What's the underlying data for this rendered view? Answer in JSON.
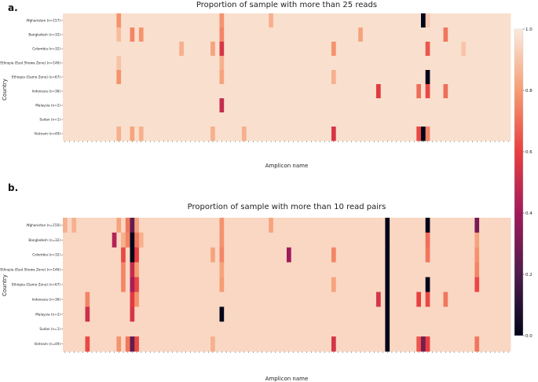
{
  "panel_labels": [
    "a.",
    "b."
  ],
  "colorbar": {
    "ticks": [
      "0.0",
      "0.2",
      "0.4",
      "0.6",
      "0.8",
      "1.0"
    ],
    "colormap": [
      "#03051a",
      "#4c1d4b",
      "#a11a5b",
      "#e83f3f",
      "#f69c73",
      "#faebdd"
    ]
  },
  "chart_data": [
    {
      "type": "heatmap",
      "title": "Proportion of sample with more than 25 reads",
      "xlabel": "Amplicon name",
      "ylabel": "Country",
      "rows": [
        "Afghanistan (n=157)",
        "Bangladesh (n=32)",
        "Colombia (n=32)",
        "Ethiopia (East Shewa Zone) (n=146)",
        "Ethiopia (Gamo Zone) (n=67)",
        "Indonesia (n=36)",
        "Malaysia (n=2)",
        "Sudan (n=1)",
        "Vietnam (n=49)"
      ],
      "n_columns": 100,
      "base_value": 0.97,
      "cells": [
        {
          "row": 0,
          "col": 12,
          "value": 0.78
        },
        {
          "row": 0,
          "col": 35,
          "value": 0.78
        },
        {
          "row": 0,
          "col": 46,
          "value": 0.85
        },
        {
          "row": 0,
          "col": 80,
          "value": 0.0
        },
        {
          "row": 0,
          "col": 81,
          "value": 0.92
        },
        {
          "row": 1,
          "col": 12,
          "value": 0.88
        },
        {
          "row": 1,
          "col": 15,
          "value": 0.75
        },
        {
          "row": 1,
          "col": 17,
          "value": 0.78
        },
        {
          "row": 1,
          "col": 35,
          "value": 0.75
        },
        {
          "row": 1,
          "col": 66,
          "value": 0.82
        },
        {
          "row": 1,
          "col": 85,
          "value": 0.72
        },
        {
          "row": 2,
          "col": 26,
          "value": 0.85
        },
        {
          "row": 2,
          "col": 33,
          "value": 0.82
        },
        {
          "row": 2,
          "col": 35,
          "value": 0.55
        },
        {
          "row": 2,
          "col": 60,
          "value": 0.78
        },
        {
          "row": 2,
          "col": 81,
          "value": 0.65
        },
        {
          "row": 2,
          "col": 89,
          "value": 0.9
        },
        {
          "row": 3,
          "col": 12,
          "value": 0.9
        },
        {
          "row": 3,
          "col": 35,
          "value": 0.85
        },
        {
          "row": 4,
          "col": 12,
          "value": 0.78
        },
        {
          "row": 4,
          "col": 35,
          "value": 0.82
        },
        {
          "row": 4,
          "col": 60,
          "value": 0.85
        },
        {
          "row": 4,
          "col": 81,
          "value": 0.0
        },
        {
          "row": 5,
          "col": 70,
          "value": 0.58
        },
        {
          "row": 5,
          "col": 79,
          "value": 0.7
        },
        {
          "row": 5,
          "col": 81,
          "value": 0.62
        },
        {
          "row": 5,
          "col": 85,
          "value": 0.7
        },
        {
          "row": 6,
          "col": 35,
          "value": 0.5
        },
        {
          "row": 8,
          "col": 12,
          "value": 0.85
        },
        {
          "row": 8,
          "col": 15,
          "value": 0.82
        },
        {
          "row": 8,
          "col": 17,
          "value": 0.85
        },
        {
          "row": 8,
          "col": 33,
          "value": 0.85
        },
        {
          "row": 8,
          "col": 40,
          "value": 0.85
        },
        {
          "row": 8,
          "col": 60,
          "value": 0.55
        },
        {
          "row": 8,
          "col": 79,
          "value": 0.62
        },
        {
          "row": 8,
          "col": 80,
          "value": 0.0
        },
        {
          "row": 8,
          "col": 81,
          "value": 0.75
        }
      ]
    },
    {
      "type": "heatmap",
      "title": "Proportion of sample with more than 10 read pairs",
      "xlabel": "Amplicon name",
      "ylabel": "Country",
      "rows": [
        "Afghanistan (n=150)",
        "Bangladesh (n=32)",
        "Colombia (n=32)",
        "Ethiopia (East Shewa Zone) (n=146)",
        "Ethiopia (Gamo Zone) (n=67)",
        "Indonesia (n=36)",
        "Malaysia (n=2)",
        "Sudan (n=1)",
        "Vietnam (n=49)"
      ],
      "n_columns": 100,
      "base_value": 0.95,
      "cells": [
        {
          "row": 0,
          "col": 0,
          "value": 0.85
        },
        {
          "row": 0,
          "col": 2,
          "value": 0.85
        },
        {
          "row": 0,
          "col": 12,
          "value": 0.82
        },
        {
          "row": 0,
          "col": 14,
          "value": 0.72
        },
        {
          "row": 0,
          "col": 15,
          "value": 0.25
        },
        {
          "row": 0,
          "col": 16,
          "value": 0.82
        },
        {
          "row": 0,
          "col": 35,
          "value": 0.78
        },
        {
          "row": 0,
          "col": 46,
          "value": 0.82
        },
        {
          "row": 0,
          "col": 72,
          "value": 0.0
        },
        {
          "row": 0,
          "col": 81,
          "value": 0.0
        },
        {
          "row": 0,
          "col": 92,
          "value": 0.3
        },
        {
          "row": 1,
          "col": 11,
          "value": 0.45
        },
        {
          "row": 1,
          "col": 13,
          "value": 0.85
        },
        {
          "row": 1,
          "col": 14,
          "value": 0.75
        },
        {
          "row": 1,
          "col": 15,
          "value": 0.0
        },
        {
          "row": 1,
          "col": 16,
          "value": 0.72
        },
        {
          "row": 1,
          "col": 17,
          "value": 0.85
        },
        {
          "row": 1,
          "col": 35,
          "value": 0.78
        },
        {
          "row": 1,
          "col": 72,
          "value": 0.0
        },
        {
          "row": 1,
          "col": 81,
          "value": 0.7
        },
        {
          "row": 1,
          "col": 92,
          "value": 0.82
        },
        {
          "row": 2,
          "col": 13,
          "value": 0.62
        },
        {
          "row": 2,
          "col": 15,
          "value": 0.0
        },
        {
          "row": 2,
          "col": 16,
          "value": 0.6
        },
        {
          "row": 2,
          "col": 33,
          "value": 0.82
        },
        {
          "row": 2,
          "col": 35,
          "value": 0.75
        },
        {
          "row": 2,
          "col": 50,
          "value": 0.4
        },
        {
          "row": 2,
          "col": 60,
          "value": 0.75
        },
        {
          "row": 2,
          "col": 72,
          "value": 0.0
        },
        {
          "row": 2,
          "col": 81,
          "value": 0.72
        },
        {
          "row": 2,
          "col": 92,
          "value": 0.78
        },
        {
          "row": 3,
          "col": 13,
          "value": 0.75
        },
        {
          "row": 3,
          "col": 15,
          "value": 0.5
        },
        {
          "row": 3,
          "col": 16,
          "value": 0.8
        },
        {
          "row": 3,
          "col": 35,
          "value": 0.82
        },
        {
          "row": 3,
          "col": 72,
          "value": 0.0
        },
        {
          "row": 3,
          "col": 92,
          "value": 0.75
        },
        {
          "row": 4,
          "col": 13,
          "value": 0.75
        },
        {
          "row": 4,
          "col": 15,
          "value": 0.42
        },
        {
          "row": 4,
          "col": 16,
          "value": 0.62
        },
        {
          "row": 4,
          "col": 35,
          "value": 0.8
        },
        {
          "row": 4,
          "col": 60,
          "value": 0.82
        },
        {
          "row": 4,
          "col": 72,
          "value": 0.0
        },
        {
          "row": 4,
          "col": 81,
          "value": 0.0
        },
        {
          "row": 4,
          "col": 92,
          "value": 0.62
        },
        {
          "row": 5,
          "col": 5,
          "value": 0.75
        },
        {
          "row": 5,
          "col": 15,
          "value": 0.58
        },
        {
          "row": 5,
          "col": 16,
          "value": 0.78
        },
        {
          "row": 5,
          "col": 70,
          "value": 0.55
        },
        {
          "row": 5,
          "col": 72,
          "value": 0.0
        },
        {
          "row": 5,
          "col": 79,
          "value": 0.6
        },
        {
          "row": 5,
          "col": 81,
          "value": 0.62
        },
        {
          "row": 5,
          "col": 85,
          "value": 0.72
        },
        {
          "row": 6,
          "col": 5,
          "value": 0.52
        },
        {
          "row": 6,
          "col": 15,
          "value": 0.55
        },
        {
          "row": 6,
          "col": 35,
          "value": 0.0
        },
        {
          "row": 6,
          "col": 72,
          "value": 0.0
        },
        {
          "row": 7,
          "col": 72,
          "value": 0.0
        },
        {
          "row": 8,
          "col": 5,
          "value": 0.62
        },
        {
          "row": 8,
          "col": 12,
          "value": 0.78
        },
        {
          "row": 8,
          "col": 14,
          "value": 0.72
        },
        {
          "row": 8,
          "col": 15,
          "value": 0.25
        },
        {
          "row": 8,
          "col": 16,
          "value": 0.62
        },
        {
          "row": 8,
          "col": 33,
          "value": 0.85
        },
        {
          "row": 8,
          "col": 60,
          "value": 0.55
        },
        {
          "row": 8,
          "col": 72,
          "value": 0.0
        },
        {
          "row": 8,
          "col": 79,
          "value": 0.65
        },
        {
          "row": 8,
          "col": 80,
          "value": 0.3
        },
        {
          "row": 8,
          "col": 81,
          "value": 0.6
        },
        {
          "row": 8,
          "col": 92,
          "value": 0.72
        }
      ]
    }
  ]
}
